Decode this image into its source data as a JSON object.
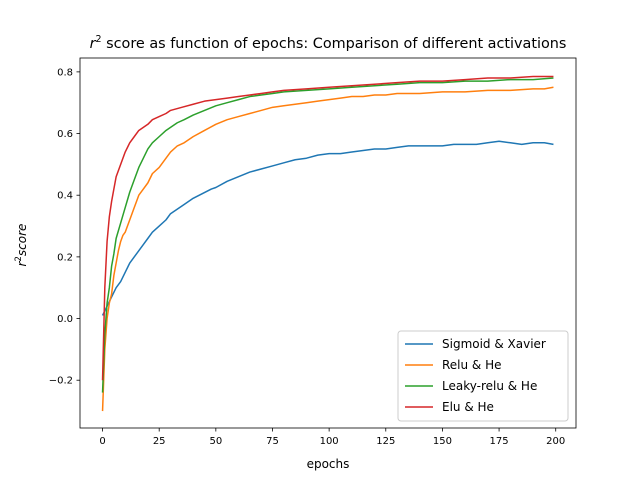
{
  "chart_data": {
    "type": "line",
    "title": {
      "prefix": "r",
      "sup": "2",
      "rest": " score as function of epochs: Comparison of different activations"
    },
    "xlabel": "epochs",
    "ylabel": {
      "base": "r",
      "sup": "2",
      "rest": "score"
    },
    "xlim": [
      -9.95,
      208.95
    ],
    "ylim": [
      -0.355,
      0.845
    ],
    "xticks": [
      0,
      25,
      50,
      75,
      100,
      125,
      150,
      175,
      200
    ],
    "yticks": [
      -0.2,
      0.0,
      0.2,
      0.4,
      0.6,
      0.8
    ],
    "ytick_labels": [
      "−0.2",
      "0.0",
      "0.2",
      "0.4",
      "0.6",
      "0.8"
    ],
    "grid": false,
    "legend_position": "lower-right",
    "series": [
      {
        "name": "Sigmoid & Xavier",
        "color": "#1f77b4",
        "x": [
          0,
          2,
          4,
          6,
          8,
          10,
          12,
          15,
          18,
          20,
          22,
          25,
          28,
          30,
          33,
          36,
          40,
          44,
          48,
          50,
          55,
          60,
          65,
          70,
          75,
          80,
          85,
          90,
          95,
          100,
          105,
          110,
          115,
          120,
          125,
          130,
          135,
          140,
          145,
          150,
          155,
          160,
          165,
          170,
          175,
          180,
          185,
          190,
          195,
          199
        ],
        "y": [
          0.01,
          0.04,
          0.07,
          0.1,
          0.12,
          0.15,
          0.18,
          0.21,
          0.24,
          0.26,
          0.28,
          0.3,
          0.32,
          0.34,
          0.355,
          0.37,
          0.39,
          0.405,
          0.42,
          0.425,
          0.445,
          0.46,
          0.475,
          0.485,
          0.495,
          0.505,
          0.515,
          0.52,
          0.53,
          0.535,
          0.535,
          0.54,
          0.545,
          0.55,
          0.55,
          0.555,
          0.56,
          0.56,
          0.56,
          0.56,
          0.565,
          0.565,
          0.565,
          0.57,
          0.575,
          0.57,
          0.565,
          0.57,
          0.57,
          0.565
        ]
      },
      {
        "name": "Relu & He",
        "color": "#ff7f0e",
        "x": [
          0,
          1,
          2,
          3,
          4,
          5,
          6,
          7,
          8,
          9,
          10,
          12,
          14,
          16,
          18,
          20,
          22,
          25,
          28,
          30,
          33,
          36,
          40,
          45,
          50,
          55,
          60,
          65,
          70,
          75,
          80,
          85,
          90,
          95,
          100,
          105,
          110,
          115,
          120,
          125,
          130,
          140,
          150,
          160,
          170,
          180,
          190,
          195,
          199
        ],
        "y": [
          -0.3,
          -0.1,
          0.0,
          0.05,
          0.08,
          0.14,
          0.18,
          0.22,
          0.25,
          0.27,
          0.28,
          0.32,
          0.36,
          0.4,
          0.42,
          0.44,
          0.47,
          0.49,
          0.52,
          0.54,
          0.56,
          0.57,
          0.59,
          0.61,
          0.63,
          0.645,
          0.655,
          0.665,
          0.675,
          0.685,
          0.69,
          0.695,
          0.7,
          0.705,
          0.71,
          0.715,
          0.72,
          0.72,
          0.725,
          0.725,
          0.73,
          0.73,
          0.735,
          0.735,
          0.74,
          0.74,
          0.745,
          0.745,
          0.75
        ]
      },
      {
        "name": "Leaky-relu & He",
        "color": "#2ca02c",
        "x": [
          0,
          1,
          2,
          3,
          4,
          5,
          6,
          8,
          10,
          12,
          14,
          16,
          18,
          20,
          22,
          25,
          28,
          30,
          33,
          36,
          40,
          45,
          50,
          55,
          60,
          65,
          70,
          75,
          80,
          90,
          100,
          110,
          120,
          130,
          140,
          150,
          160,
          170,
          180,
          190,
          199
        ],
        "y": [
          -0.24,
          -0.05,
          0.05,
          0.1,
          0.17,
          0.21,
          0.26,
          0.31,
          0.36,
          0.41,
          0.45,
          0.49,
          0.52,
          0.55,
          0.57,
          0.59,
          0.61,
          0.62,
          0.635,
          0.645,
          0.66,
          0.675,
          0.69,
          0.7,
          0.71,
          0.72,
          0.725,
          0.73,
          0.735,
          0.74,
          0.745,
          0.75,
          0.755,
          0.76,
          0.765,
          0.765,
          0.77,
          0.77,
          0.775,
          0.775,
          0.78
        ]
      },
      {
        "name": "Elu & He",
        "color": "#d62728",
        "x": [
          0,
          1,
          2,
          3,
          4,
          5,
          6,
          8,
          10,
          12,
          14,
          16,
          18,
          20,
          22,
          25,
          28,
          30,
          35,
          40,
          45,
          50,
          55,
          60,
          65,
          70,
          75,
          80,
          90,
          100,
          110,
          120,
          130,
          140,
          150,
          160,
          170,
          180,
          190,
          199
        ],
        "y": [
          -0.2,
          0.1,
          0.25,
          0.33,
          0.38,
          0.42,
          0.46,
          0.5,
          0.54,
          0.57,
          0.59,
          0.61,
          0.62,
          0.63,
          0.645,
          0.655,
          0.665,
          0.675,
          0.685,
          0.695,
          0.705,
          0.71,
          0.715,
          0.72,
          0.725,
          0.73,
          0.735,
          0.74,
          0.745,
          0.75,
          0.755,
          0.76,
          0.765,
          0.77,
          0.77,
          0.775,
          0.78,
          0.78,
          0.785,
          0.785
        ]
      }
    ]
  }
}
